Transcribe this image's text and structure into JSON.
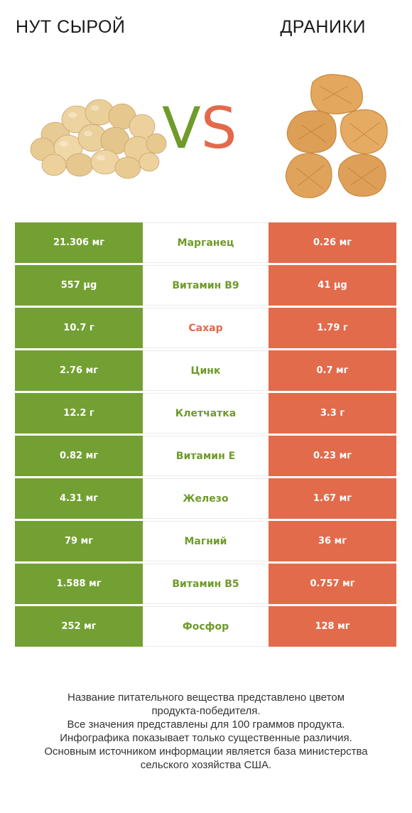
{
  "header": {
    "left_food": "НУТ СЫРОЙ",
    "right_food": "ДРАНИКИ",
    "vs_v": "V",
    "vs_s": "S"
  },
  "colors": {
    "left_accent": "#73a033",
    "right_accent": "#e26b4c"
  },
  "nutrients": [
    {
      "name": "Марганец",
      "left": "21.306 мг",
      "right": "0.26 мг",
      "winner": "left"
    },
    {
      "name": "Витамин B9",
      "left": "557 µg",
      "right": "41 µg",
      "winner": "left"
    },
    {
      "name": "Сахар",
      "left": "10.7 г",
      "right": "1.79 г",
      "winner": "right"
    },
    {
      "name": "Цинк",
      "left": "2.76 мг",
      "right": "0.7 мг",
      "winner": "left"
    },
    {
      "name": "Клетчатка",
      "left": "12.2 г",
      "right": "3.3 г",
      "winner": "left"
    },
    {
      "name": "Витамин E",
      "left": "0.82 мг",
      "right": "0.23 мг",
      "winner": "left"
    },
    {
      "name": "Железо",
      "left": "4.31 мг",
      "right": "1.67 мг",
      "winner": "left"
    },
    {
      "name": "Магний",
      "left": "79 мг",
      "right": "36 мг",
      "winner": "left"
    },
    {
      "name": "Витамин B5",
      "left": "1.588 мг",
      "right": "0.757 мг",
      "winner": "left"
    },
    {
      "name": "Фосфор",
      "left": "252 мг",
      "right": "128 мг",
      "winner": "left"
    }
  ],
  "footer": {
    "line1": "Название питательного вещества представлено цветом",
    "line2": "продукта-победителя.",
    "line3": "Все значения представлены для 100 граммов продукта.",
    "line4": "Инфографика показывает только существенные различия.",
    "line5": "Основным источником информации является база министерства",
    "line6": "сельского хозяйства США."
  }
}
